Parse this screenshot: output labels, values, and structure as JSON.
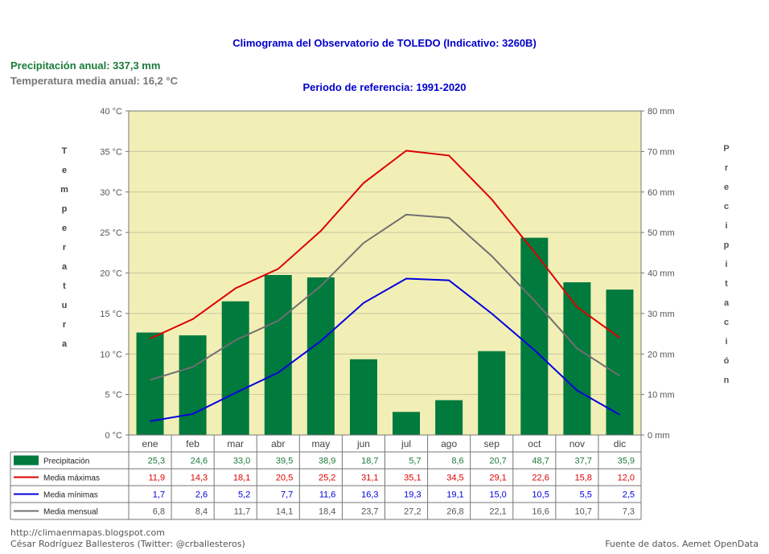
{
  "header": {
    "title": "Climograma del Observatorio de TOLEDO (Indicativo: 3260B)",
    "period": "Periodo de referencia: 1991-2020",
    "annual_precip": "Precipitación anual: 337,3 mm",
    "annual_temp": "Temperatura media anual: 16,2 °C"
  },
  "axes": {
    "left_label": "Temperatura",
    "right_label": "Precipitación"
  },
  "chart_data": {
    "type": "bar",
    "categories": [
      "ene",
      "feb",
      "mar",
      "abr",
      "may",
      "jun",
      "jul",
      "ago",
      "sep",
      "oct",
      "nov",
      "dic"
    ],
    "y_left": {
      "min": 0,
      "max": 40,
      "step": 5,
      "unit": "°C"
    },
    "y_right": {
      "min": 0,
      "max": 80,
      "step": 10,
      "unit": "mm"
    },
    "series": [
      {
        "name": "Precipitación",
        "type": "bar",
        "axis": "right",
        "color": "#007a3d",
        "values": [
          25.3,
          24.6,
          33.0,
          39.5,
          38.9,
          18.7,
          5.7,
          8.6,
          20.7,
          48.7,
          37.7,
          35.9
        ],
        "labels": [
          "25,3",
          "24,6",
          "33,0",
          "39,5",
          "38,9",
          "18,7",
          "5,7",
          "8,6",
          "20,7",
          "48,7",
          "37,7",
          "35,9"
        ]
      },
      {
        "name": "Media máximas",
        "type": "line",
        "axis": "left",
        "color": "#dd0000",
        "values": [
          11.9,
          14.3,
          18.1,
          20.5,
          25.2,
          31.1,
          35.1,
          34.5,
          29.1,
          22.6,
          15.8,
          12.0
        ],
        "labels": [
          "11,9",
          "14,3",
          "18,1",
          "20,5",
          "25,2",
          "31,1",
          "35,1",
          "34,5",
          "29,1",
          "22,6",
          "15,8",
          "12,0"
        ]
      },
      {
        "name": "Media mínimas",
        "type": "line",
        "axis": "left",
        "color": "#0000dd",
        "values": [
          1.7,
          2.6,
          5.2,
          7.7,
          11.6,
          16.3,
          19.3,
          19.1,
          15.0,
          10.5,
          5.5,
          2.5
        ],
        "labels": [
          "1,7",
          "2,6",
          "5,2",
          "7,7",
          "11,6",
          "16,3",
          "19,3",
          "19,1",
          "15,0",
          "10,5",
          "5,5",
          "2,5"
        ]
      },
      {
        "name": "Media mensual",
        "type": "line",
        "axis": "left",
        "color": "#707070",
        "values": [
          6.8,
          8.4,
          11.7,
          14.1,
          18.4,
          23.7,
          27.2,
          26.8,
          22.1,
          16.6,
          10.7,
          7.3
        ],
        "labels": [
          "6,8",
          "8,4",
          "11,7",
          "14,1",
          "18,4",
          "23,7",
          "27,2",
          "26,8",
          "22,1",
          "16,6",
          "10,7",
          "7,3"
        ]
      }
    ],
    "plot_background": "#f2efb6",
    "grid": true
  },
  "footer": {
    "url": "http://climaenmapas.blogspot.com",
    "author": "César Rodríguez Ballesteros (Twitter: @crballesteros)",
    "source": "Fuente de datos. Aemet OpenData"
  }
}
